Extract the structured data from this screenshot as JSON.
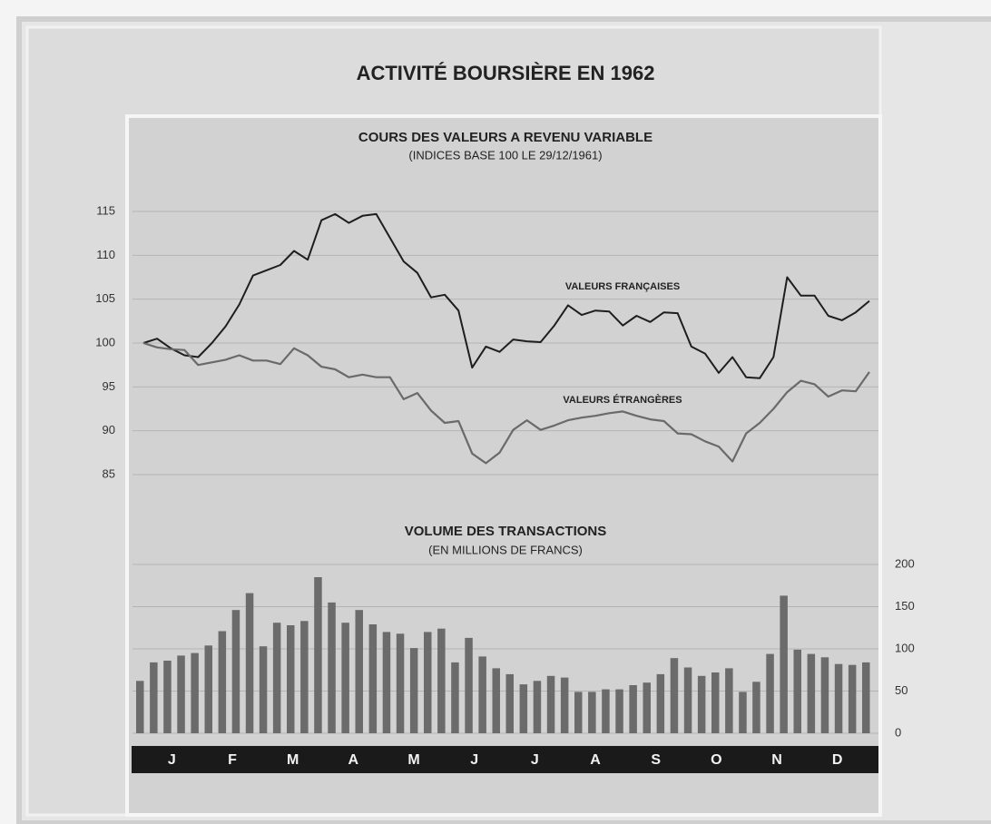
{
  "title": "ACTIVITÉ BOURSIÈRE EN 1962",
  "months": [
    "J",
    "F",
    "M",
    "A",
    "M",
    "J",
    "J",
    "A",
    "S",
    "O",
    "N",
    "D"
  ],
  "chart_data": [
    {
      "type": "line",
      "title": "COURS DES VALEURS A REVENU VARIABLE",
      "subtitle": "(INDICES BASE 100 LE 29/12/1961)",
      "ylim": [
        85,
        115
      ],
      "yticks": [
        85,
        90,
        95,
        100,
        105,
        110,
        115
      ],
      "grid": true,
      "series": [
        {
          "name": "VALEURS FRANÇAISES",
          "color": "#1e1e1e",
          "values": [
            100,
            100.5,
            99.4,
            98.6,
            98.4,
            100,
            101.9,
            104.4,
            107.7,
            108.3,
            108.9,
            110.5,
            109.5,
            114,
            114.7,
            113.7,
            114.5,
            114.7,
            112,
            109.3,
            108,
            105.2,
            105.5,
            103.7,
            97.2,
            99.6,
            99,
            100.4,
            100.2,
            100.1,
            102,
            104.3,
            103.2,
            103.7,
            103.6,
            102,
            103.1,
            102.4,
            103.5,
            103.4,
            99.6,
            98.8,
            96.6,
            98.4,
            96.1,
            96,
            98.4,
            107.5,
            105.4,
            105.4,
            103.1,
            102.6,
            103.5,
            104.8
          ]
        },
        {
          "name": "VALEURS ÉTRANGÈRES",
          "color": "#6a6a6a",
          "values": [
            100,
            99.5,
            99.3,
            99.2,
            97.5,
            97.8,
            98.1,
            98.6,
            98,
            98,
            97.6,
            99.4,
            98.6,
            97.3,
            97,
            96.1,
            96.4,
            96.1,
            96.1,
            93.6,
            94.3,
            92.3,
            90.9,
            91.1,
            87.4,
            86.3,
            87.5,
            90.1,
            91.2,
            90.1,
            90.6,
            91.2,
            91.5,
            91.7,
            92,
            92.2,
            91.7,
            91.3,
            91.1,
            89.7,
            89.6,
            88.8,
            88.2,
            86.5,
            89.7,
            90.9,
            92.5,
            94.4,
            95.7,
            95.3,
            93.9,
            94.6,
            94.5,
            96.7
          ]
        }
      ]
    },
    {
      "type": "bar",
      "title": "VOLUME DES TRANSACTIONS",
      "subtitle": "(EN MILLIONS DE FRANCS)",
      "ylim": [
        0,
        200
      ],
      "yticks": [
        0,
        50,
        100,
        150,
        200
      ],
      "grid": true,
      "color": "#6b6b6b",
      "values": [
        62,
        84,
        86,
        92,
        95,
        104,
        121,
        146,
        166,
        103,
        131,
        128,
        133,
        185,
        155,
        131,
        146,
        129,
        120,
        118,
        101,
        120,
        124,
        84,
        113,
        91,
        77,
        70,
        58,
        62,
        68,
        66,
        49,
        49,
        52,
        52,
        57,
        60,
        70,
        89,
        78,
        68,
        72,
        77,
        49,
        61,
        94,
        163,
        99,
        94,
        90,
        82,
        81,
        84
      ]
    }
  ]
}
